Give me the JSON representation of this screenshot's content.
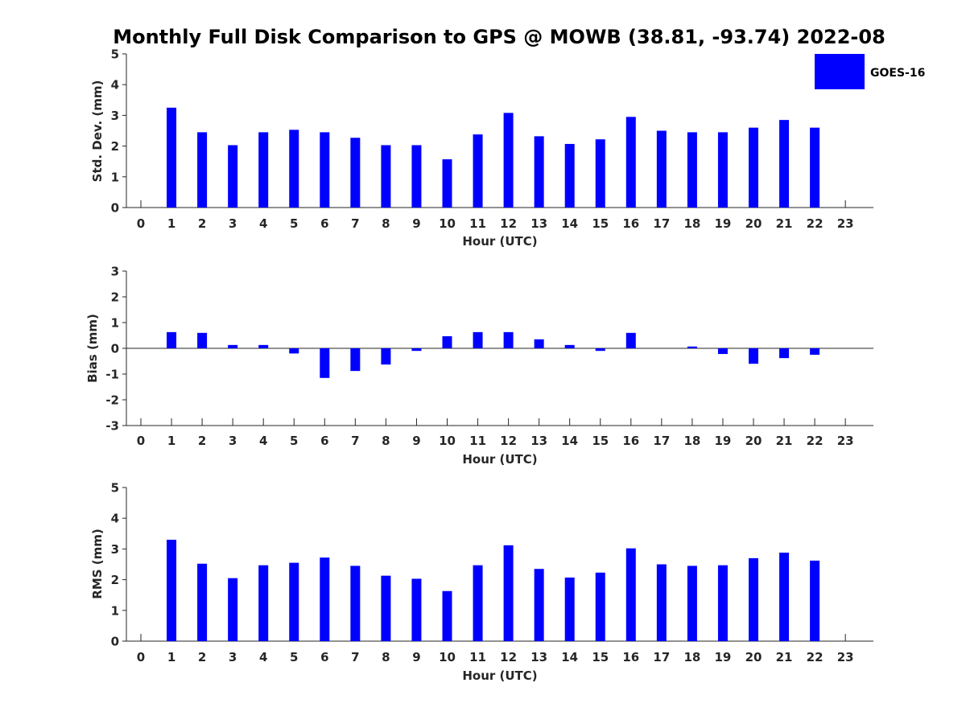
{
  "chart_data": [
    {
      "type": "bar",
      "title": "Monthly Full Disk Comparison to GPS @ MOWB (38.81, -93.74) 2022-08",
      "xlabel": "Hour (UTC)",
      "ylabel": "Std. Dev. (mm)",
      "ylim": [
        0,
        5
      ],
      "yticks": [
        0,
        1,
        2,
        3,
        4,
        5
      ],
      "x": [
        0,
        1,
        2,
        3,
        4,
        5,
        6,
        7,
        8,
        9,
        10,
        11,
        12,
        13,
        14,
        15,
        16,
        17,
        18,
        19,
        20,
        21,
        22,
        23
      ],
      "series": [
        {
          "name": "GOES-16",
          "color": "#0000ff",
          "values": [
            null,
            3.25,
            2.45,
            2.03,
            2.45,
            2.53,
            2.45,
            2.27,
            2.03,
            2.03,
            1.57,
            2.38,
            3.08,
            2.32,
            2.07,
            2.22,
            2.95,
            2.5,
            2.45,
            2.45,
            2.6,
            2.85,
            2.6,
            null
          ]
        }
      ]
    },
    {
      "type": "bar",
      "xlabel": "Hour (UTC)",
      "ylabel": "Bias (mm)",
      "ylim": [
        -3,
        3
      ],
      "yticks": [
        -3,
        -2,
        -1,
        0,
        1,
        2,
        3
      ],
      "zero_line": true,
      "x": [
        0,
        1,
        2,
        3,
        4,
        5,
        6,
        7,
        8,
        9,
        10,
        11,
        12,
        13,
        14,
        15,
        16,
        17,
        18,
        19,
        20,
        21,
        22,
        23
      ],
      "series": [
        {
          "name": "GOES-16",
          "color": "#0000ff",
          "values": [
            null,
            0.63,
            0.6,
            0.13,
            0.13,
            -0.2,
            -1.15,
            -0.88,
            -0.63,
            -0.1,
            0.47,
            0.63,
            0.63,
            0.35,
            0.13,
            -0.1,
            0.6,
            null,
            0.07,
            -0.22,
            -0.6,
            -0.38,
            -0.25,
            null
          ]
        }
      ]
    },
    {
      "type": "bar",
      "xlabel": "Hour (UTC)",
      "ylabel": "RMS (mm)",
      "ylim": [
        0,
        5
      ],
      "yticks": [
        0,
        1,
        2,
        3,
        4,
        5
      ],
      "x": [
        0,
        1,
        2,
        3,
        4,
        5,
        6,
        7,
        8,
        9,
        10,
        11,
        12,
        13,
        14,
        15,
        16,
        17,
        18,
        19,
        20,
        21,
        22,
        23
      ],
      "series": [
        {
          "name": "GOES-16",
          "color": "#0000ff",
          "values": [
            null,
            3.3,
            2.52,
            2.05,
            2.47,
            2.55,
            2.72,
            2.45,
            2.13,
            2.03,
            1.63,
            2.47,
            3.12,
            2.35,
            2.07,
            2.23,
            3.02,
            2.5,
            2.45,
            2.47,
            2.7,
            2.88,
            2.62,
            null
          ]
        }
      ]
    }
  ],
  "legend": {
    "label": "GOES-16",
    "color": "#0000ff",
    "position": "top-right"
  }
}
